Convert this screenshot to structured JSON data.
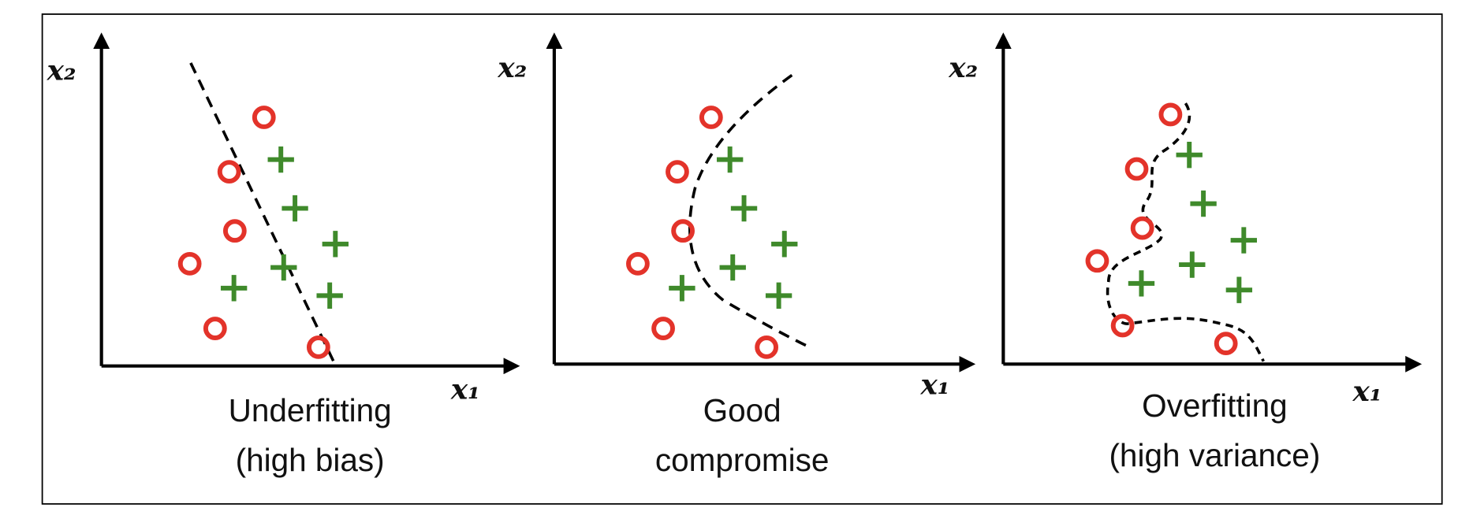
{
  "panels": [
    {
      "title_lines": [
        "Underfitting",
        "(high bias)"
      ],
      "x_label": "x₁",
      "y_label": "x₂"
    },
    {
      "title_lines": [
        "Good",
        "compromise"
      ],
      "x_label": "x₁",
      "y_label": "x₂"
    },
    {
      "title_lines": [
        "Overfitting",
        "(high variance)"
      ],
      "x_label": "x₁",
      "y_label": "x₂"
    }
  ]
}
